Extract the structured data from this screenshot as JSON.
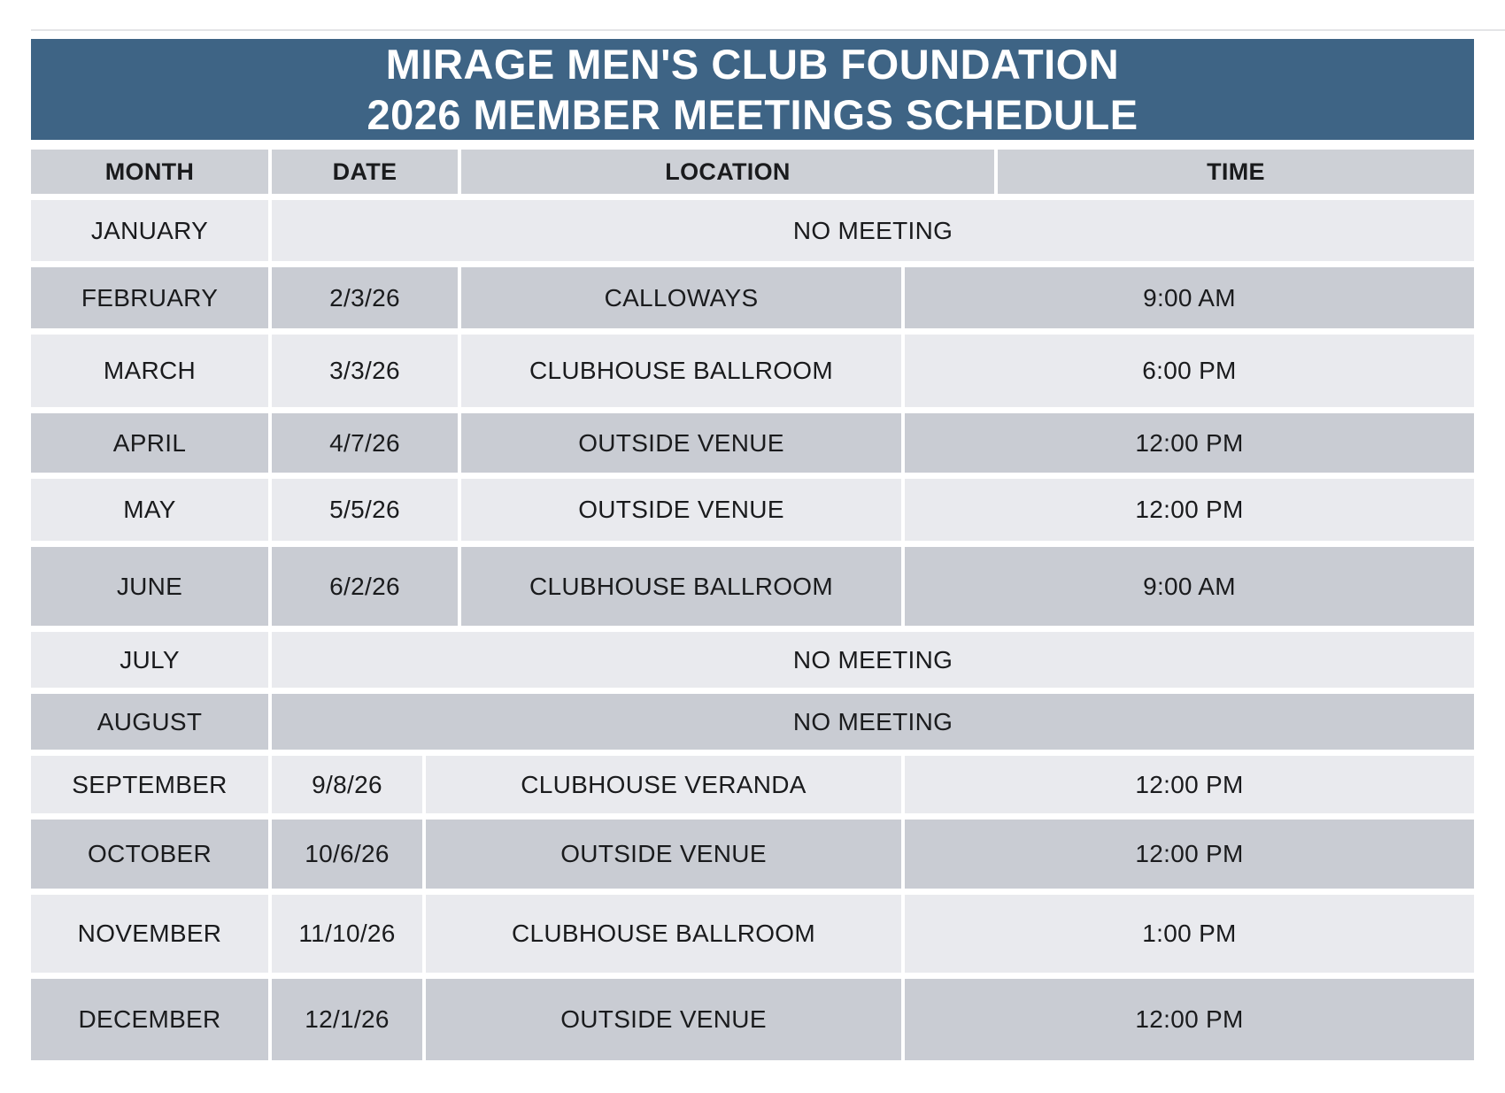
{
  "title": {
    "line1": "MIRAGE MEN'S CLUB FOUNDATION",
    "line2": "2026 MEMBER MEETINGS SCHEDULE"
  },
  "table": {
    "headers": [
      "MONTH",
      "DATE",
      "LOCATION",
      "TIME"
    ],
    "no_meeting_label": "NO MEETING",
    "rows": [
      {
        "month": "JANUARY",
        "no_meeting": true
      },
      {
        "month": "FEBRUARY",
        "date": "2/3/26",
        "location": "CALLOWAYS",
        "time": "9:00 AM"
      },
      {
        "month": "MARCH",
        "date": "3/3/26",
        "location": "CLUBHOUSE BALLROOM",
        "time": "6:00 PM"
      },
      {
        "month": "APRIL",
        "date": "4/7/26",
        "location": "OUTSIDE VENUE",
        "time": "12:00 PM"
      },
      {
        "month": "MAY",
        "date": "5/5/26",
        "location": "OUTSIDE VENUE",
        "time": "12:00 PM"
      },
      {
        "month": "JUNE",
        "date": "6/2/26",
        "location": "CLUBHOUSE BALLROOM",
        "time": "9:00 AM"
      },
      {
        "month": "JULY",
        "no_meeting": true
      },
      {
        "month": "AUGUST",
        "no_meeting": true
      },
      {
        "month": "SEPTEMBER",
        "date": "9/8/26",
        "location": "CLUBHOUSE VERANDA",
        "time": "12:00 PM"
      },
      {
        "month": "OCTOBER",
        "date": "10/6/26",
        "location": "OUTSIDE VENUE",
        "time": "12:00 PM"
      },
      {
        "month": "NOVEMBER",
        "date": "11/10/26",
        "location": "CLUBHOUSE BALLROOM",
        "time": "1:00 PM"
      },
      {
        "month": "DECEMBER",
        "date": "12/1/26",
        "location": "OUTSIDE VENUE",
        "time": "12:00 PM"
      }
    ]
  },
  "colors": {
    "banner_blue": "#3e6485",
    "header_gray": "#cdd0d6",
    "row_dark": "#c9ccd3",
    "row_light": "#e9eaee",
    "text": "#1a1b1d"
  }
}
